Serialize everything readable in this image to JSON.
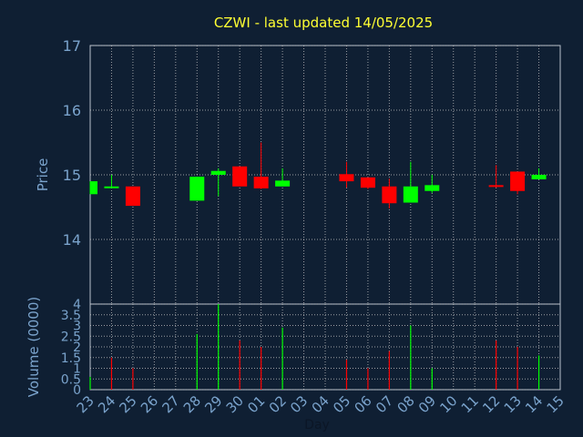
{
  "chart_data": {
    "type": "candlestick",
    "title": "CZWI - last updated 14/05/2025",
    "xlabel": "Day",
    "x_ticks": [
      "23",
      "24",
      "25",
      "26",
      "27",
      "28",
      "29",
      "30",
      "01",
      "02",
      "03",
      "04",
      "05",
      "06",
      "07",
      "08",
      "09",
      "10",
      "11",
      "12",
      "13",
      "14",
      "15"
    ],
    "price": {
      "ylabel": "Price",
      "ylim": [
        13.0,
        17.0
      ],
      "ticks": [
        "14",
        "15",
        "16",
        "17"
      ],
      "candles": [
        {
          "day": "23",
          "open": 14.7,
          "high": 14.9,
          "low": 14.7,
          "close": 14.9
        },
        {
          "day": "24",
          "open": 14.82,
          "high": 15.0,
          "low": 14.8,
          "close": 14.82
        },
        {
          "day": "25",
          "open": 14.82,
          "high": 14.82,
          "low": 14.52,
          "close": 14.52
        },
        {
          "day": "28",
          "open": 14.6,
          "high": 14.97,
          "low": 14.6,
          "close": 14.97
        },
        {
          "day": "29",
          "open": 15.0,
          "high": 15.1,
          "low": 14.67,
          "close": 15.06
        },
        {
          "day": "30",
          "open": 15.13,
          "high": 15.13,
          "low": 14.82,
          "close": 14.82
        },
        {
          "day": "01",
          "open": 14.97,
          "high": 15.5,
          "low": 14.78,
          "close": 14.79
        },
        {
          "day": "02",
          "open": 14.82,
          "high": 15.1,
          "low": 14.82,
          "close": 14.91
        },
        {
          "day": "05",
          "open": 15.01,
          "high": 15.2,
          "low": 14.8,
          "close": 14.9
        },
        {
          "day": "06",
          "open": 14.96,
          "high": 14.96,
          "low": 14.78,
          "close": 14.8
        },
        {
          "day": "07",
          "open": 14.82,
          "high": 14.94,
          "low": 14.48,
          "close": 14.56
        },
        {
          "day": "08",
          "open": 14.57,
          "high": 15.2,
          "low": 14.57,
          "close": 14.82
        },
        {
          "day": "09",
          "open": 14.75,
          "high": 15.0,
          "low": 14.72,
          "close": 14.84
        },
        {
          "day": "12",
          "open": 14.84,
          "high": 15.15,
          "low": 14.8,
          "close": 14.83
        },
        {
          "day": "13",
          "open": 15.05,
          "high": 15.05,
          "low": 14.7,
          "close": 14.75
        },
        {
          "day": "14",
          "open": 14.93,
          "high": 15.1,
          "low": 14.93,
          "close": 15.0
        }
      ]
    },
    "volume": {
      "ylabel": "Volume (0000)",
      "ylim": [
        0,
        4
      ],
      "ticks": [
        "0",
        "0.5",
        "1",
        "1.5",
        "2",
        "2.5",
        "3",
        "3.5",
        "4"
      ],
      "bars": [
        {
          "day": "23",
          "value": 0.6,
          "direction": "up"
        },
        {
          "day": "24",
          "value": 1.5,
          "direction": "down"
        },
        {
          "day": "25",
          "value": 1.0,
          "direction": "down"
        },
        {
          "day": "28",
          "value": 2.6,
          "direction": "up"
        },
        {
          "day": "29",
          "value": 4.0,
          "direction": "up"
        },
        {
          "day": "30",
          "value": 2.3,
          "direction": "down"
        },
        {
          "day": "01",
          "value": 2.0,
          "direction": "down"
        },
        {
          "day": "02",
          "value": 2.9,
          "direction": "up"
        },
        {
          "day": "05",
          "value": 1.4,
          "direction": "down"
        },
        {
          "day": "06",
          "value": 1.0,
          "direction": "down"
        },
        {
          "day": "07",
          "value": 1.8,
          "direction": "down"
        },
        {
          "day": "08",
          "value": 3.0,
          "direction": "up"
        },
        {
          "day": "09",
          "value": 1.0,
          "direction": "up"
        },
        {
          "day": "12",
          "value": 2.3,
          "direction": "down"
        },
        {
          "day": "13",
          "value": 2.0,
          "direction": "down"
        },
        {
          "day": "14",
          "value": 1.6,
          "direction": "up"
        }
      ]
    },
    "grid": true,
    "colors": {
      "background": "#0f1f33",
      "up": "#00ff00",
      "down": "#ff0000",
      "grid": "#c8c8c8",
      "title": "#ffff33",
      "axis_text": "#7aa3cc",
      "frame": "#b8c2cc"
    }
  }
}
